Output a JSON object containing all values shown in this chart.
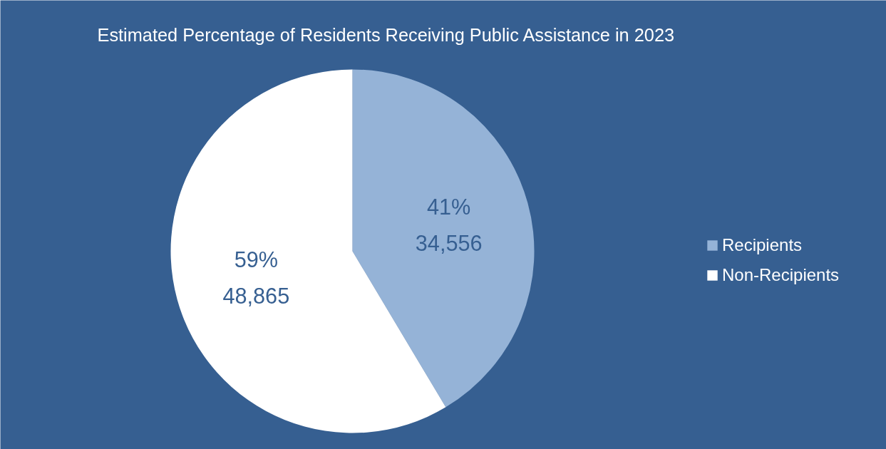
{
  "chart_data": {
    "type": "pie",
    "title": "Estimated Percentage of Residents Receiving Public Assistance in 2023",
    "categories": [
      "Recipients",
      "Non-Recipients"
    ],
    "values": [
      34556,
      48865
    ],
    "colors": [
      "#95b3d7",
      "#ffffff"
    ],
    "value_labels": [
      "41%\n34,556",
      "59%\n48,865"
    ],
    "legend": "right"
  }
}
